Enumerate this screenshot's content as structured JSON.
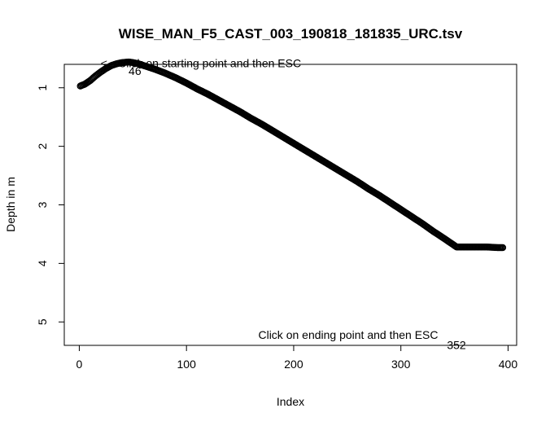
{
  "chart_data": {
    "type": "scatter",
    "title": "WISE_MAN_F5_CAST_003_190818_181835_URC.tsv",
    "xlabel": "Index",
    "ylabel": "Depth in m",
    "xlim": [
      -14,
      408
    ],
    "ylim": [
      5.4,
      0.6
    ],
    "y_inverted": true,
    "x_ticks": [
      0,
      100,
      200,
      300,
      400
    ],
    "y_ticks": [
      1,
      2,
      3,
      4,
      5
    ],
    "grid": false,
    "series": [
      {
        "marker": "open-circle",
        "points": [
          [
            1,
            0.97
          ],
          [
            5,
            0.94
          ],
          [
            10,
            0.88
          ],
          [
            15,
            0.8
          ],
          [
            20,
            0.73
          ],
          [
            25,
            0.67
          ],
          [
            30,
            0.62
          ],
          [
            35,
            0.59
          ],
          [
            40,
            0.57
          ],
          [
            46,
            0.56
          ],
          [
            50,
            0.57
          ],
          [
            55,
            0.59
          ],
          [
            60,
            0.62
          ],
          [
            70,
            0.68
          ],
          [
            80,
            0.75
          ],
          [
            90,
            0.83
          ],
          [
            100,
            0.92
          ],
          [
            110,
            1.02
          ],
          [
            120,
            1.11
          ],
          [
            130,
            1.21
          ],
          [
            140,
            1.31
          ],
          [
            150,
            1.41
          ],
          [
            160,
            1.52
          ],
          [
            170,
            1.62
          ],
          [
            180,
            1.73
          ],
          [
            190,
            1.84
          ],
          [
            200,
            1.95
          ],
          [
            210,
            2.06
          ],
          [
            220,
            2.17
          ],
          [
            230,
            2.28
          ],
          [
            240,
            2.39
          ],
          [
            250,
            2.5
          ],
          [
            260,
            2.61
          ],
          [
            270,
            2.73
          ],
          [
            280,
            2.84
          ],
          [
            290,
            2.96
          ],
          [
            300,
            3.08
          ],
          [
            310,
            3.2
          ],
          [
            320,
            3.32
          ],
          [
            330,
            3.45
          ],
          [
            340,
            3.57
          ],
          [
            348,
            3.67
          ],
          [
            352,
            3.72
          ],
          [
            355,
            3.72
          ],
          [
            360,
            3.72
          ],
          [
            370,
            3.72
          ],
          [
            380,
            3.72
          ],
          [
            390,
            3.73
          ],
          [
            395,
            3.73
          ]
        ]
      }
    ],
    "annotations": [
      {
        "text": "<-- Click on starting point and then ESC",
        "x": 20,
        "y": 0.58
      },
      {
        "text": "46",
        "x": 46,
        "y": 0.71
      },
      {
        "text": "Click on ending point and then ESC",
        "x": 167,
        "y": 5.22
      },
      {
        "text": "352",
        "x": 343,
        "y": 5.39
      }
    ]
  }
}
